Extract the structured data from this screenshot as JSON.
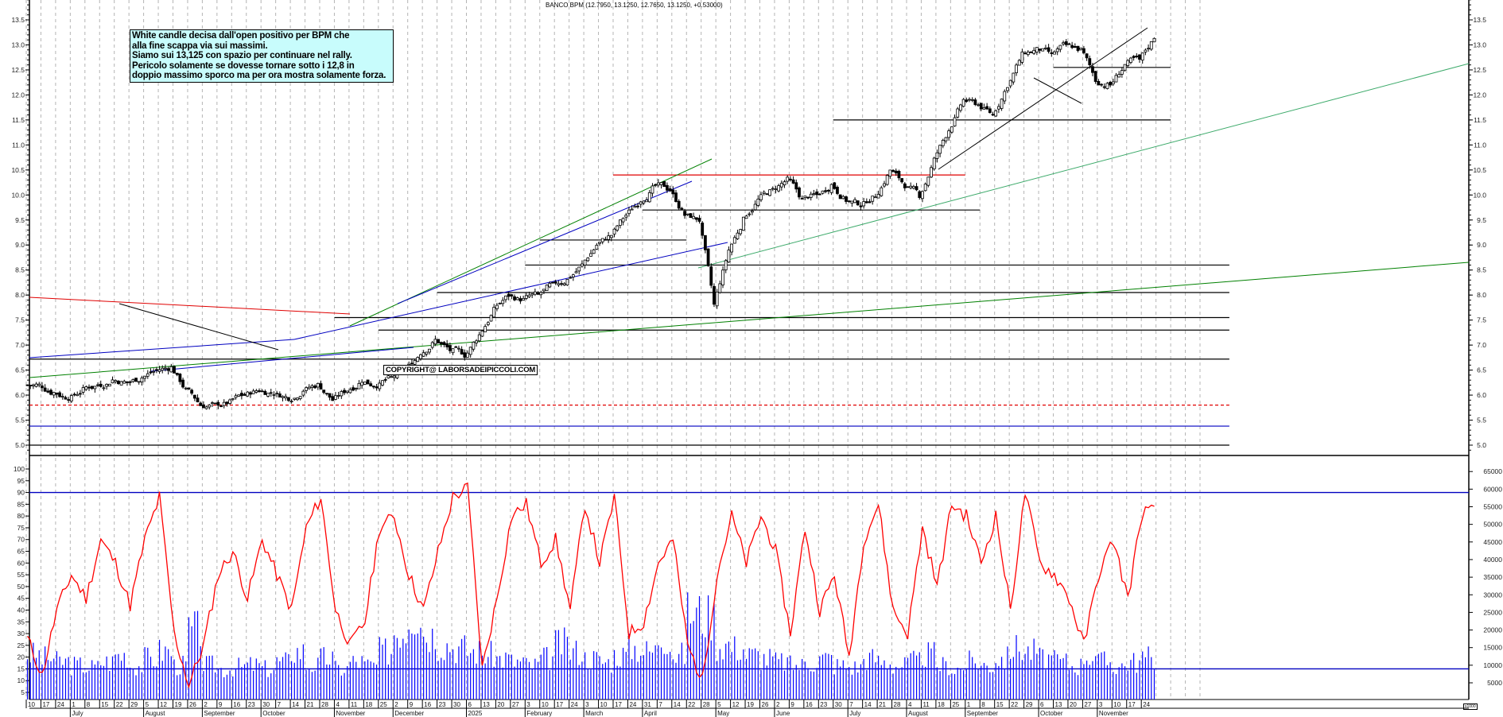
{
  "header": {
    "title": "BANCO BPM (12.7950, 13.1250, 12.7650, 13.1250, +0.53000)"
  },
  "note": {
    "lines": [
      "White candle decisa dall'open positivo per BPM che",
      "alla fine scappa via sui massimi.",
      "Siamo sui 13,125 con spazio per continuare nel rally.",
      "Pericolo solamente se dovesse tornare sotto i 12,8 in",
      "doppio massimo sporco ma per ora mostra solamente forza."
    ]
  },
  "copyright": "COPYRIGHT@ LABORSADEIPICCOLI.COM",
  "volume_unit": "x1000",
  "colors": {
    "note_bg": "#c8fcfc",
    "resistance": "#e00000",
    "trend_green": "#008000",
    "trend_blue": "#0000c0",
    "trend_lightgreen": "#3caa6a",
    "osc": "#ff0000",
    "volume": "#0000ff",
    "grid": "#b4b4b4"
  },
  "chart_data": [
    {
      "type": "candlestick",
      "title": "BANCO BPM (12.7950, 13.1250, 12.7650, 13.1250, +0.53000)",
      "ylim": [
        4.8,
        13.9
      ],
      "yticks": [
        "5.0",
        "5.5",
        "6.0",
        "6.5",
        "7.0",
        "7.5",
        "8.0",
        "8.5",
        "9.0",
        "9.5",
        "10.0",
        "10.5",
        "11.0",
        "11.5",
        "12.0",
        "12.5",
        "13.0",
        "13.5"
      ],
      "last": {
        "open": 12.795,
        "high": 13.125,
        "low": 12.765,
        "close": 13.125,
        "change": 0.53
      },
      "weekly_closes": [
        6.2,
        6.05,
        5.95,
        6.1,
        6.2,
        6.3,
        6.25,
        6.35,
        6.5,
        6.55,
        6.1,
        5.8,
        5.8,
        5.85,
        6.0,
        6.1,
        6.05,
        5.95,
        6.1,
        6.2,
        5.9,
        6.1,
        6.3,
        6.2,
        6.35,
        6.5,
        6.85,
        7.1,
        6.9,
        6.8,
        7.2,
        7.7,
        8.0,
        7.9,
        8.0,
        8.2,
        8.3,
        8.6,
        9.0,
        9.2,
        9.6,
        9.9,
        10.2,
        10.1,
        9.6,
        9.5,
        7.8,
        8.9,
        9.5,
        9.9,
        10.1,
        10.3,
        9.9,
        10.0,
        10.2,
        9.9,
        9.8,
        10.0,
        10.5,
        10.2,
        10.0,
        10.7,
        11.3,
        11.9,
        11.8,
        11.6,
        12.2,
        12.8,
        12.9,
        12.8,
        13.0,
        12.9,
        12.3,
        12.2,
        12.6,
        12.7,
        13.13
      ],
      "horizontal_lines": [
        {
          "price": 10.4,
          "from_week": 40,
          "to_week": 64,
          "color": "#e00000"
        },
        {
          "price": 11.5,
          "from_week": 55,
          "to_week": 78,
          "color": "#000000"
        },
        {
          "price": 12.55,
          "from_week": 70,
          "to_week": 78,
          "color": "#000000"
        },
        {
          "price": 9.7,
          "from_week": 42,
          "to_week": 65,
          "color": "#000000"
        },
        {
          "price": 9.1,
          "from_week": 35,
          "to_week": 45,
          "color": "#000000"
        },
        {
          "price": 8.6,
          "from_week": 34,
          "to_week": 82,
          "color": "#000000"
        },
        {
          "price": 8.05,
          "from_week": 28,
          "to_week": 82,
          "color": "#000000"
        },
        {
          "price": 7.55,
          "from_week": 21,
          "to_week": 82,
          "color": "#000000"
        },
        {
          "price": 7.3,
          "from_week": 24,
          "to_week": 82,
          "color": "#000000"
        },
        {
          "price": 6.72,
          "from_week": 0,
          "to_week": 82,
          "color": "#000000"
        },
        {
          "price": 5.8,
          "from_week": 0,
          "to_week": 82,
          "color": "#e00000",
          "dashed": true
        },
        {
          "price": 5.38,
          "from_week": 0,
          "to_week": 82,
          "color": "#0000c0"
        },
        {
          "price": 5.0,
          "from_week": 0,
          "to_week": 82,
          "color": "#000000"
        }
      ]
    },
    {
      "type": "line+bar",
      "title": "Oscillator & Volume",
      "ylim_left": [
        0,
        100
      ],
      "yticks_left": [
        "5",
        "10",
        "15",
        "20",
        "25",
        "30",
        "35",
        "40",
        "45",
        "50",
        "55",
        "60",
        "65",
        "70",
        "75",
        "80",
        "85",
        "90",
        "95",
        "100"
      ],
      "yticks_right": [
        "5000",
        "10000",
        "15000",
        "20000",
        "25000",
        "30000",
        "35000",
        "40000",
        "45000",
        "50000",
        "55000",
        "60000",
        "65000"
      ],
      "levels": [
        90,
        15
      ],
      "oscillator_weekly": [
        28,
        12,
        40,
        55,
        45,
        70,
        60,
        42,
        70,
        88,
        30,
        8,
        25,
        55,
        65,
        45,
        70,
        55,
        40,
        75,
        88,
        40,
        25,
        35,
        75,
        80,
        55,
        40,
        65,
        88,
        92,
        15,
        45,
        80,
        85,
        60,
        70,
        40,
        85,
        60,
        88,
        30,
        35,
        60,
        70,
        25,
        10,
        55,
        80,
        60,
        80,
        65,
        30,
        75,
        40,
        55,
        20,
        70,
        85,
        40,
        30,
        75,
        50,
        85,
        80,
        60,
        80,
        40,
        90,
        60,
        55,
        45,
        25,
        55,
        70,
        45,
        82
      ],
      "volume_weekly": [
        13000,
        12000,
        11000,
        10000,
        9500,
        11000,
        13000,
        10000,
        12000,
        14000,
        10000,
        20000,
        10000,
        9000,
        9500,
        10000,
        9000,
        11000,
        14000,
        10000,
        12000,
        9000,
        11000,
        10000,
        14000,
        20000,
        25000,
        19000,
        16000,
        15000,
        14000,
        13000,
        12000,
        11000,
        10000,
        12000,
        16000,
        14000,
        12000,
        11000,
        13000,
        15000,
        14000,
        18000,
        13000,
        25000,
        24000,
        16000,
        15000,
        13000,
        12000,
        11000,
        10000,
        11000,
        12000,
        10000,
        9500,
        12000,
        11000,
        10000,
        11000,
        13000,
        10000,
        9000,
        11000,
        10000,
        12000,
        15000,
        14000,
        12000,
        11000,
        10000,
        13000,
        11000,
        10000,
        11000,
        12000
      ]
    }
  ],
  "x_axis": {
    "day_ticks": [
      "10",
      "17",
      "24",
      "1",
      "8",
      "15",
      "22",
      "29",
      "5",
      "12",
      "19",
      "26",
      "2",
      "9",
      "16",
      "23",
      "30",
      "7",
      "14",
      "21",
      "28",
      "4",
      "11",
      "18",
      "25",
      "2",
      "9",
      "16",
      "23",
      "30",
      "6",
      "13",
      "20",
      "27",
      "3",
      "10",
      "17",
      "24",
      "3",
      "10",
      "17",
      "24",
      "31",
      "7",
      "14",
      "22",
      "28",
      "5",
      "12",
      "19",
      "26",
      "2",
      "9",
      "16",
      "23",
      "30",
      "7",
      "14",
      "21",
      "28",
      "4",
      "11",
      "18",
      "25",
      "1",
      "8",
      "15",
      "22",
      "29",
      "6",
      "13",
      "20",
      "27",
      "3",
      "10",
      "17",
      "24"
    ],
    "months": [
      {
        "label": "July",
        "week": 3
      },
      {
        "label": "August",
        "week": 8
      },
      {
        "label": "September",
        "week": 12
      },
      {
        "label": "October",
        "week": 16
      },
      {
        "label": "November",
        "week": 21
      },
      {
        "label": "December",
        "week": 25
      },
      {
        "label": "2025",
        "week": 30
      },
      {
        "label": "February",
        "week": 34
      },
      {
        "label": "March",
        "week": 38
      },
      {
        "label": "April",
        "week": 42
      },
      {
        "label": "May",
        "week": 47
      },
      {
        "label": "June",
        "week": 51
      },
      {
        "label": "July",
        "week": 56
      },
      {
        "label": "August",
        "week": 60
      },
      {
        "label": "September",
        "week": 64
      },
      {
        "label": "October",
        "week": 69
      },
      {
        "label": "November",
        "week": 73
      }
    ]
  }
}
